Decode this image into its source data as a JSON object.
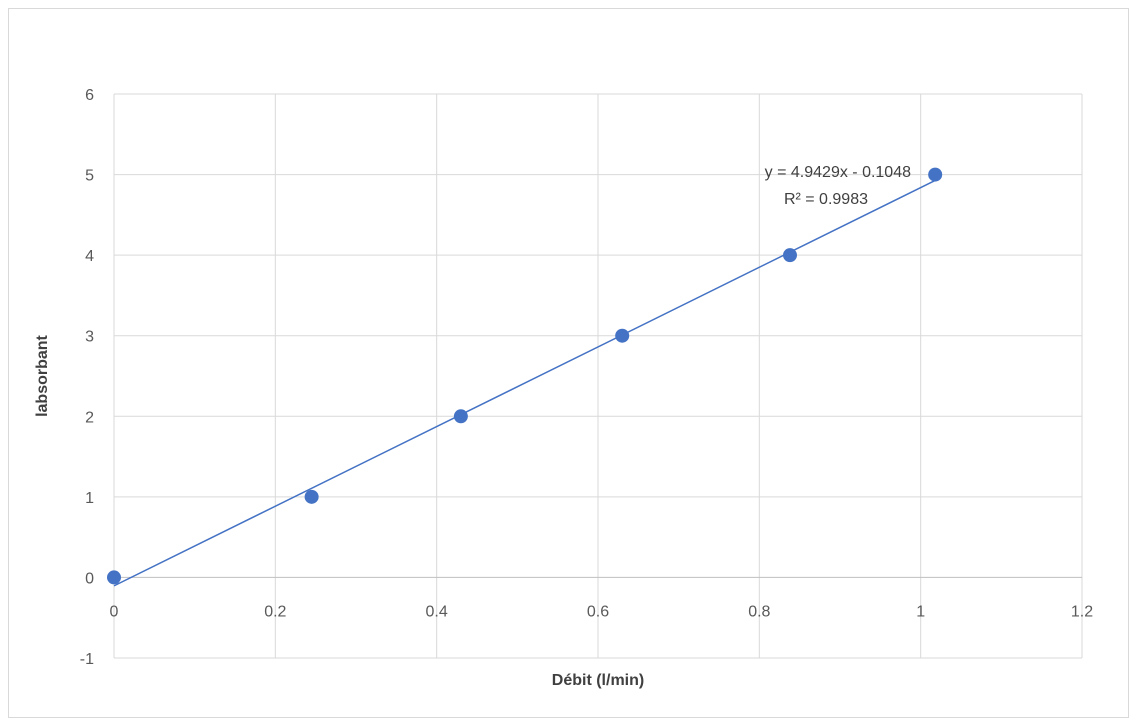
{
  "chart_data": {
    "type": "scatter",
    "title": "",
    "xlabel": "Débit (l/min)",
    "ylabel": "labsorbant",
    "xlim": [
      0,
      1.2
    ],
    "ylim": [
      -1,
      6
    ],
    "x_ticks": [
      0,
      0.2,
      0.4,
      0.6,
      0.8,
      1,
      1.2
    ],
    "y_ticks": [
      -1,
      0,
      1,
      2,
      3,
      4,
      5,
      6
    ],
    "x_tick_labels": [
      "0",
      "0.2",
      "0.4",
      "0.6",
      "0.8",
      "1",
      "1.2"
    ],
    "y_tick_labels": [
      "-1",
      "0",
      "1",
      "2",
      "3",
      "4",
      "5",
      "6"
    ],
    "grid": true,
    "legend": "none",
    "series": [
      {
        "x": [
          0,
          0.245,
          0.43,
          0.63,
          0.838,
          1.018
        ],
        "y": [
          0,
          1,
          2,
          3,
          4,
          5
        ],
        "color": "#4472c4"
      }
    ],
    "trendline": {
      "type": "linear",
      "slope": 4.9429,
      "intercept": -0.1048,
      "x_range": [
        0,
        1.018
      ],
      "color": "#4472c4",
      "equation_label": "y = 4.9429x - 0.1048",
      "r2_label": "R² = 0.9983"
    }
  }
}
